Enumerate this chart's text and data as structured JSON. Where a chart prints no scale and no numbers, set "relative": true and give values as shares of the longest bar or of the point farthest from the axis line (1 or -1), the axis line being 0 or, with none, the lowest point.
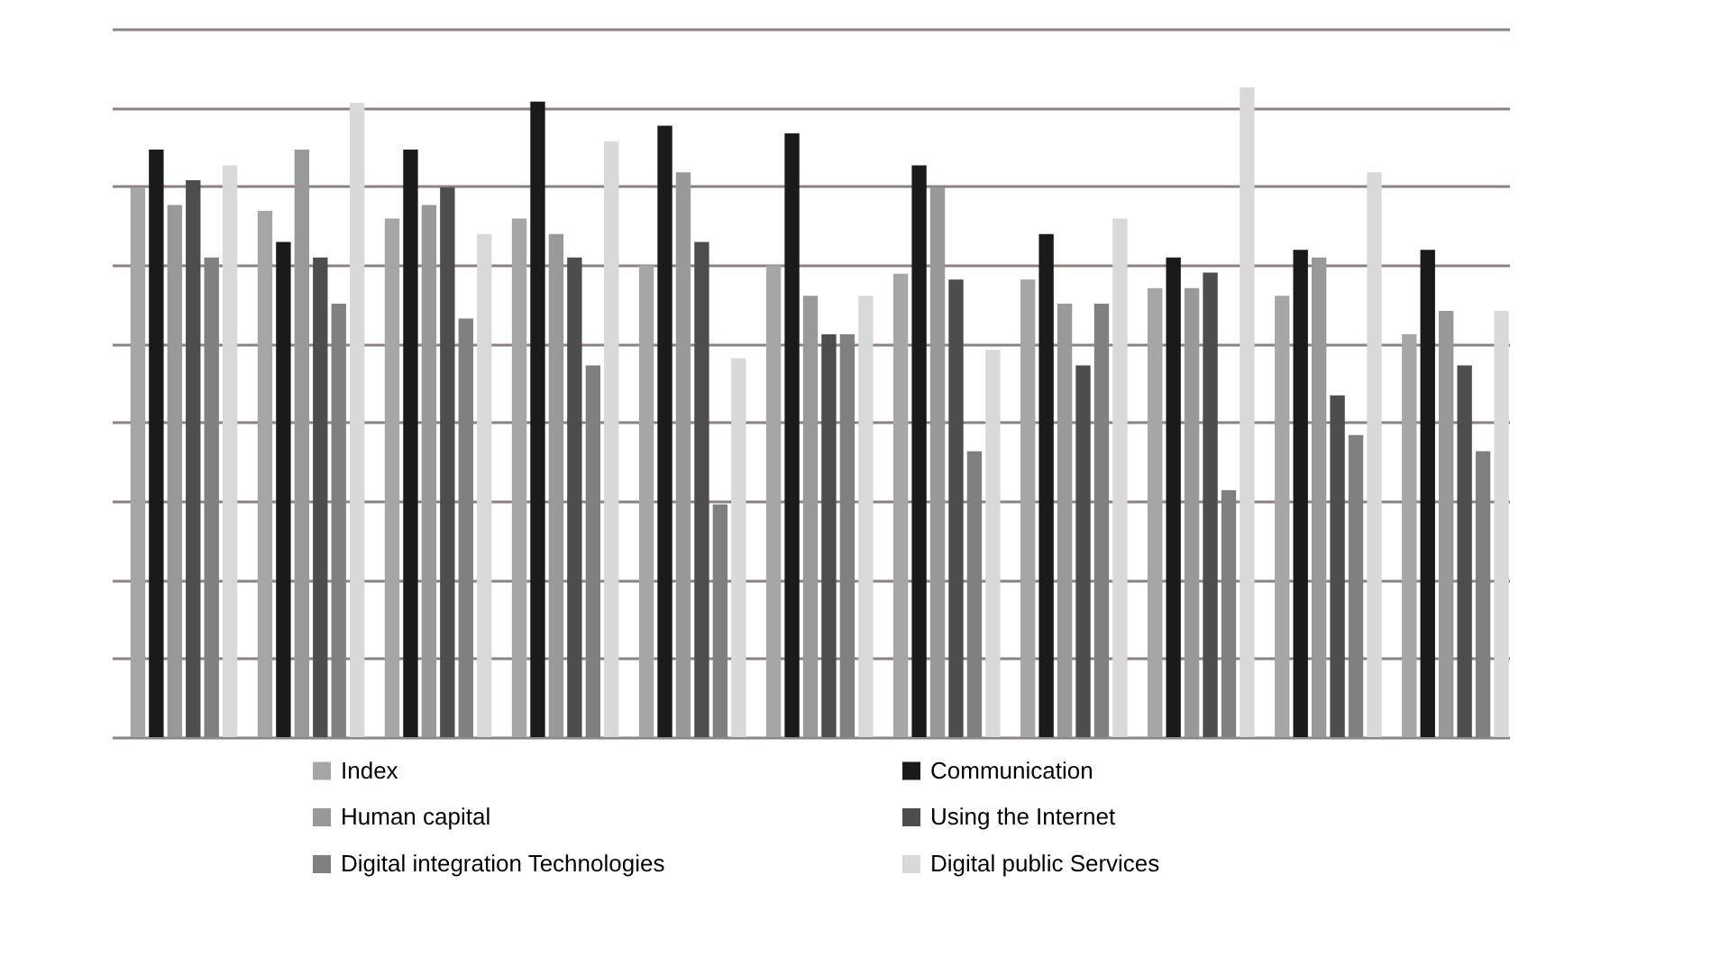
{
  "chart_data": {
    "type": "bar",
    "relative": true,
    "grid": "y",
    "legend": "bottom",
    "categories": [
      null,
      null,
      null,
      null,
      null,
      null,
      null,
      null,
      null,
      null,
      null
    ],
    "series": [
      {
        "name": "Index",
        "color": "#a6a6a6",
        "values": [
          0.846,
          0.81,
          0.798,
          0.798,
          0.726,
          0.726,
          0.713,
          0.704,
          0.691,
          0.679,
          0.62
        ]
      },
      {
        "name": "Communication",
        "color": "#1a1a1a",
        "values": [
          0.904,
          0.762,
          0.904,
          0.978,
          0.941,
          0.929,
          0.88,
          0.774,
          0.738,
          0.75,
          0.75
        ]
      },
      {
        "name": "Human capital",
        "color": "#999999",
        "values": [
          0.819,
          0.904,
          0.819,
          0.774,
          0.869,
          0.679,
          0.846,
          0.667,
          0.691,
          0.738,
          0.656
        ]
      },
      {
        "name": "Using the Internet",
        "color": "#4d4d4d",
        "values": [
          0.857,
          0.738,
          0.846,
          0.738,
          0.762,
          0.62,
          0.704,
          0.572,
          0.715,
          0.526,
          0.572
        ]
      },
      {
        "name": "Digital integration Technologies",
        "color": "#808080",
        "values": [
          0.738,
          0.667,
          0.644,
          0.572,
          0.358,
          0.62,
          0.44,
          0.667,
          0.38,
          0.465,
          0.44
        ]
      },
      {
        "name": "Digital public Services",
        "color": "#d9d9d9",
        "values": [
          0.88,
          0.976,
          0.774,
          0.917,
          0.583,
          0.679,
          0.596,
          0.798,
          1,
          0.869,
          0.656
        ]
      }
    ]
  }
}
